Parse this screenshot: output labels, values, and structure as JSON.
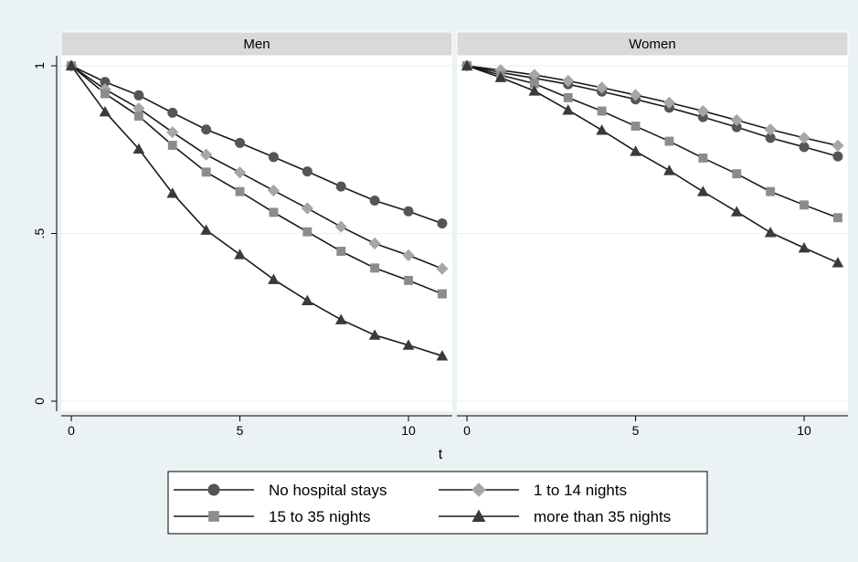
{
  "chart_data": {
    "type": "line",
    "xlabel": "t",
    "ylabel": "",
    "xlim": [
      -0.3,
      11.3
    ],
    "ylim": [
      -0.03,
      1.03
    ],
    "xticks": [
      0,
      5,
      10
    ],
    "yticks": [
      0,
      0.5,
      1
    ],
    "yticklabels": [
      "0",
      ".5",
      "1"
    ],
    "grid": true,
    "legend_position": "bottom",
    "panels": [
      {
        "title": "Men",
        "x": [
          0,
          1,
          2,
          3,
          4,
          5,
          6,
          7,
          8,
          9,
          10,
          11
        ],
        "series": [
          {
            "name": "No hospital stays",
            "marker": "circle",
            "color": "#555555",
            "values": [
              1.0,
              0.952,
              0.912,
              0.86,
              0.81,
              0.77,
              0.728,
              0.685,
              0.64,
              0.598,
              0.566,
              0.53
            ]
          },
          {
            "name": "1 to 14 nights",
            "marker": "diamond",
            "color": "#a6a6a6",
            "values": [
              1.0,
              0.93,
              0.873,
              0.802,
              0.735,
              0.682,
              0.628,
              0.575,
              0.52,
              0.47,
              0.435,
              0.395
            ]
          },
          {
            "name": "15 to 35 nights",
            "marker": "square",
            "color": "#8c8c8c",
            "values": [
              1.0,
              0.917,
              0.85,
              0.763,
              0.683,
              0.625,
              0.563,
              0.505,
              0.447,
              0.397,
              0.36,
              0.32
            ]
          },
          {
            "name": "more than 35 nights",
            "marker": "triangle",
            "color": "#3a3a3a",
            "values": [
              1.0,
              0.863,
              0.752,
              0.62,
              0.51,
              0.437,
              0.363,
              0.3,
              0.243,
              0.197,
              0.167,
              0.135
            ]
          }
        ]
      },
      {
        "title": "Women",
        "x": [
          0,
          1,
          2,
          3,
          4,
          5,
          6,
          7,
          8,
          9,
          10,
          11
        ],
        "series": [
          {
            "name": "No hospital stays",
            "marker": "circle",
            "color": "#555555",
            "values": [
              1.0,
              0.98,
              0.963,
              0.945,
              0.923,
              0.9,
              0.875,
              0.847,
              0.817,
              0.785,
              0.758,
              0.73
            ]
          },
          {
            "name": "1 to 14 nights",
            "marker": "diamond",
            "color": "#a6a6a6",
            "values": [
              1.0,
              0.987,
              0.973,
              0.955,
              0.935,
              0.913,
              0.89,
              0.865,
              0.838,
              0.81,
              0.785,
              0.762
            ]
          },
          {
            "name": "15 to 35 nights",
            "marker": "square",
            "color": "#8c8c8c",
            "values": [
              1.0,
              0.972,
              0.947,
              0.905,
              0.865,
              0.82,
              0.775,
              0.725,
              0.678,
              0.625,
              0.585,
              0.547
            ]
          },
          {
            "name": "more than 35 nights",
            "marker": "triangle",
            "color": "#3a3a3a",
            "values": [
              1.0,
              0.965,
              0.925,
              0.868,
              0.808,
              0.745,
              0.688,
              0.625,
              0.565,
              0.503,
              0.457,
              0.413
            ]
          }
        ]
      }
    ]
  }
}
